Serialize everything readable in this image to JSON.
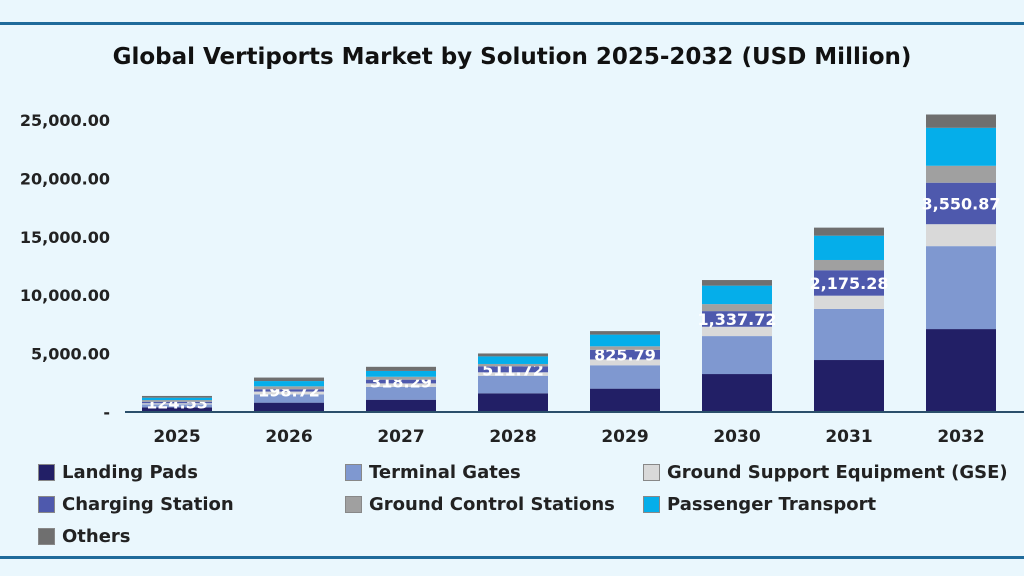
{
  "chart_data": {
    "type": "stacked-bar",
    "title": "Global Vertiports Market by Solution 2025-2032 (USD Million)",
    "categories": [
      "2025",
      "2026",
      "2027",
      "2028",
      "2029",
      "2030",
      "2031",
      "2032"
    ],
    "ylim": [
      0,
      25000
    ],
    "yticks": [
      0,
      5000,
      10000,
      15000,
      20000,
      25000
    ],
    "ytick_labels": [
      "-",
      "5,000.00",
      "10,000.00",
      "15,000.00",
      "20,000.00",
      "25,000.00"
    ],
    "grid": false,
    "legend_placement": "bottom",
    "series": [
      {
        "name": "Landing Pads",
        "color": "#221f66",
        "values": [
          400,
          800,
          1050,
          1600,
          2000,
          3250,
          4450,
          7100
        ]
      },
      {
        "name": "Terminal Gates",
        "color": "#7f98d0",
        "values": [
          250,
          700,
          1100,
          1500,
          2000,
          3250,
          4370,
          7100
        ]
      },
      {
        "name": "Ground Support Equipment (GSE)",
        "color": "#d9d9d9",
        "values": [
          100,
          250,
          300,
          300,
          500,
          800,
          1140,
          1880
        ]
      },
      {
        "name": "Charging Station",
        "color": "#4e59ad",
        "values": [
          124.53,
          198.72,
          318.29,
          511.72,
          825.79,
          1337.72,
          2175.28,
          3550.87
        ],
        "data_labels": [
          "124.53",
          "198.72",
          "318.29",
          "511.72",
          "825.79",
          "1,337.72",
          "2,175.28",
          "3,550.87"
        ]
      },
      {
        "name": "Ground Control Stations",
        "color": "#a0a0a0",
        "values": [
          150,
          250,
          250,
          200,
          300,
          600,
          880,
          1450
        ]
      },
      {
        "name": "Passenger Transport",
        "color": "#05aeea",
        "values": [
          200,
          450,
          500,
          650,
          1000,
          1580,
          2080,
          3250
        ]
      },
      {
        "name": "Others",
        "color": "#6f6f6f",
        "values": [
          150,
          300,
          350,
          250,
          300,
          480,
          690,
          1140
        ]
      }
    ]
  }
}
